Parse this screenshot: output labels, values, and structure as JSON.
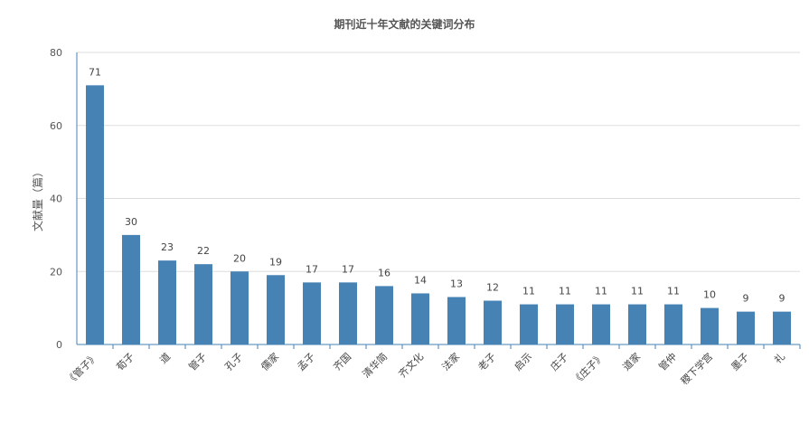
{
  "chart_data": {
    "type": "bar",
    "title": "期刊近十年文献的关键词分布",
    "xlabel": "",
    "ylabel": "文献量（篇）",
    "ylim": [
      0,
      80
    ],
    "yticks": [
      0,
      20,
      40,
      60,
      80
    ],
    "grid": true,
    "legend": "none",
    "bar_color": "#4682b4",
    "categories": [
      "《管子》",
      "荀子",
      "道",
      "管子",
      "孔子",
      "儒家",
      "孟子",
      "齐国",
      "清华简",
      "齐文化",
      "法家",
      "老子",
      "启示",
      "庄子",
      "《庄子》",
      "道家",
      "管仲",
      "稷下学宫",
      "墨子",
      "礼"
    ],
    "values": [
      71,
      30,
      23,
      22,
      20,
      19,
      17,
      17,
      16,
      14,
      13,
      12,
      11,
      11,
      11,
      11,
      11,
      10,
      9,
      9
    ]
  }
}
